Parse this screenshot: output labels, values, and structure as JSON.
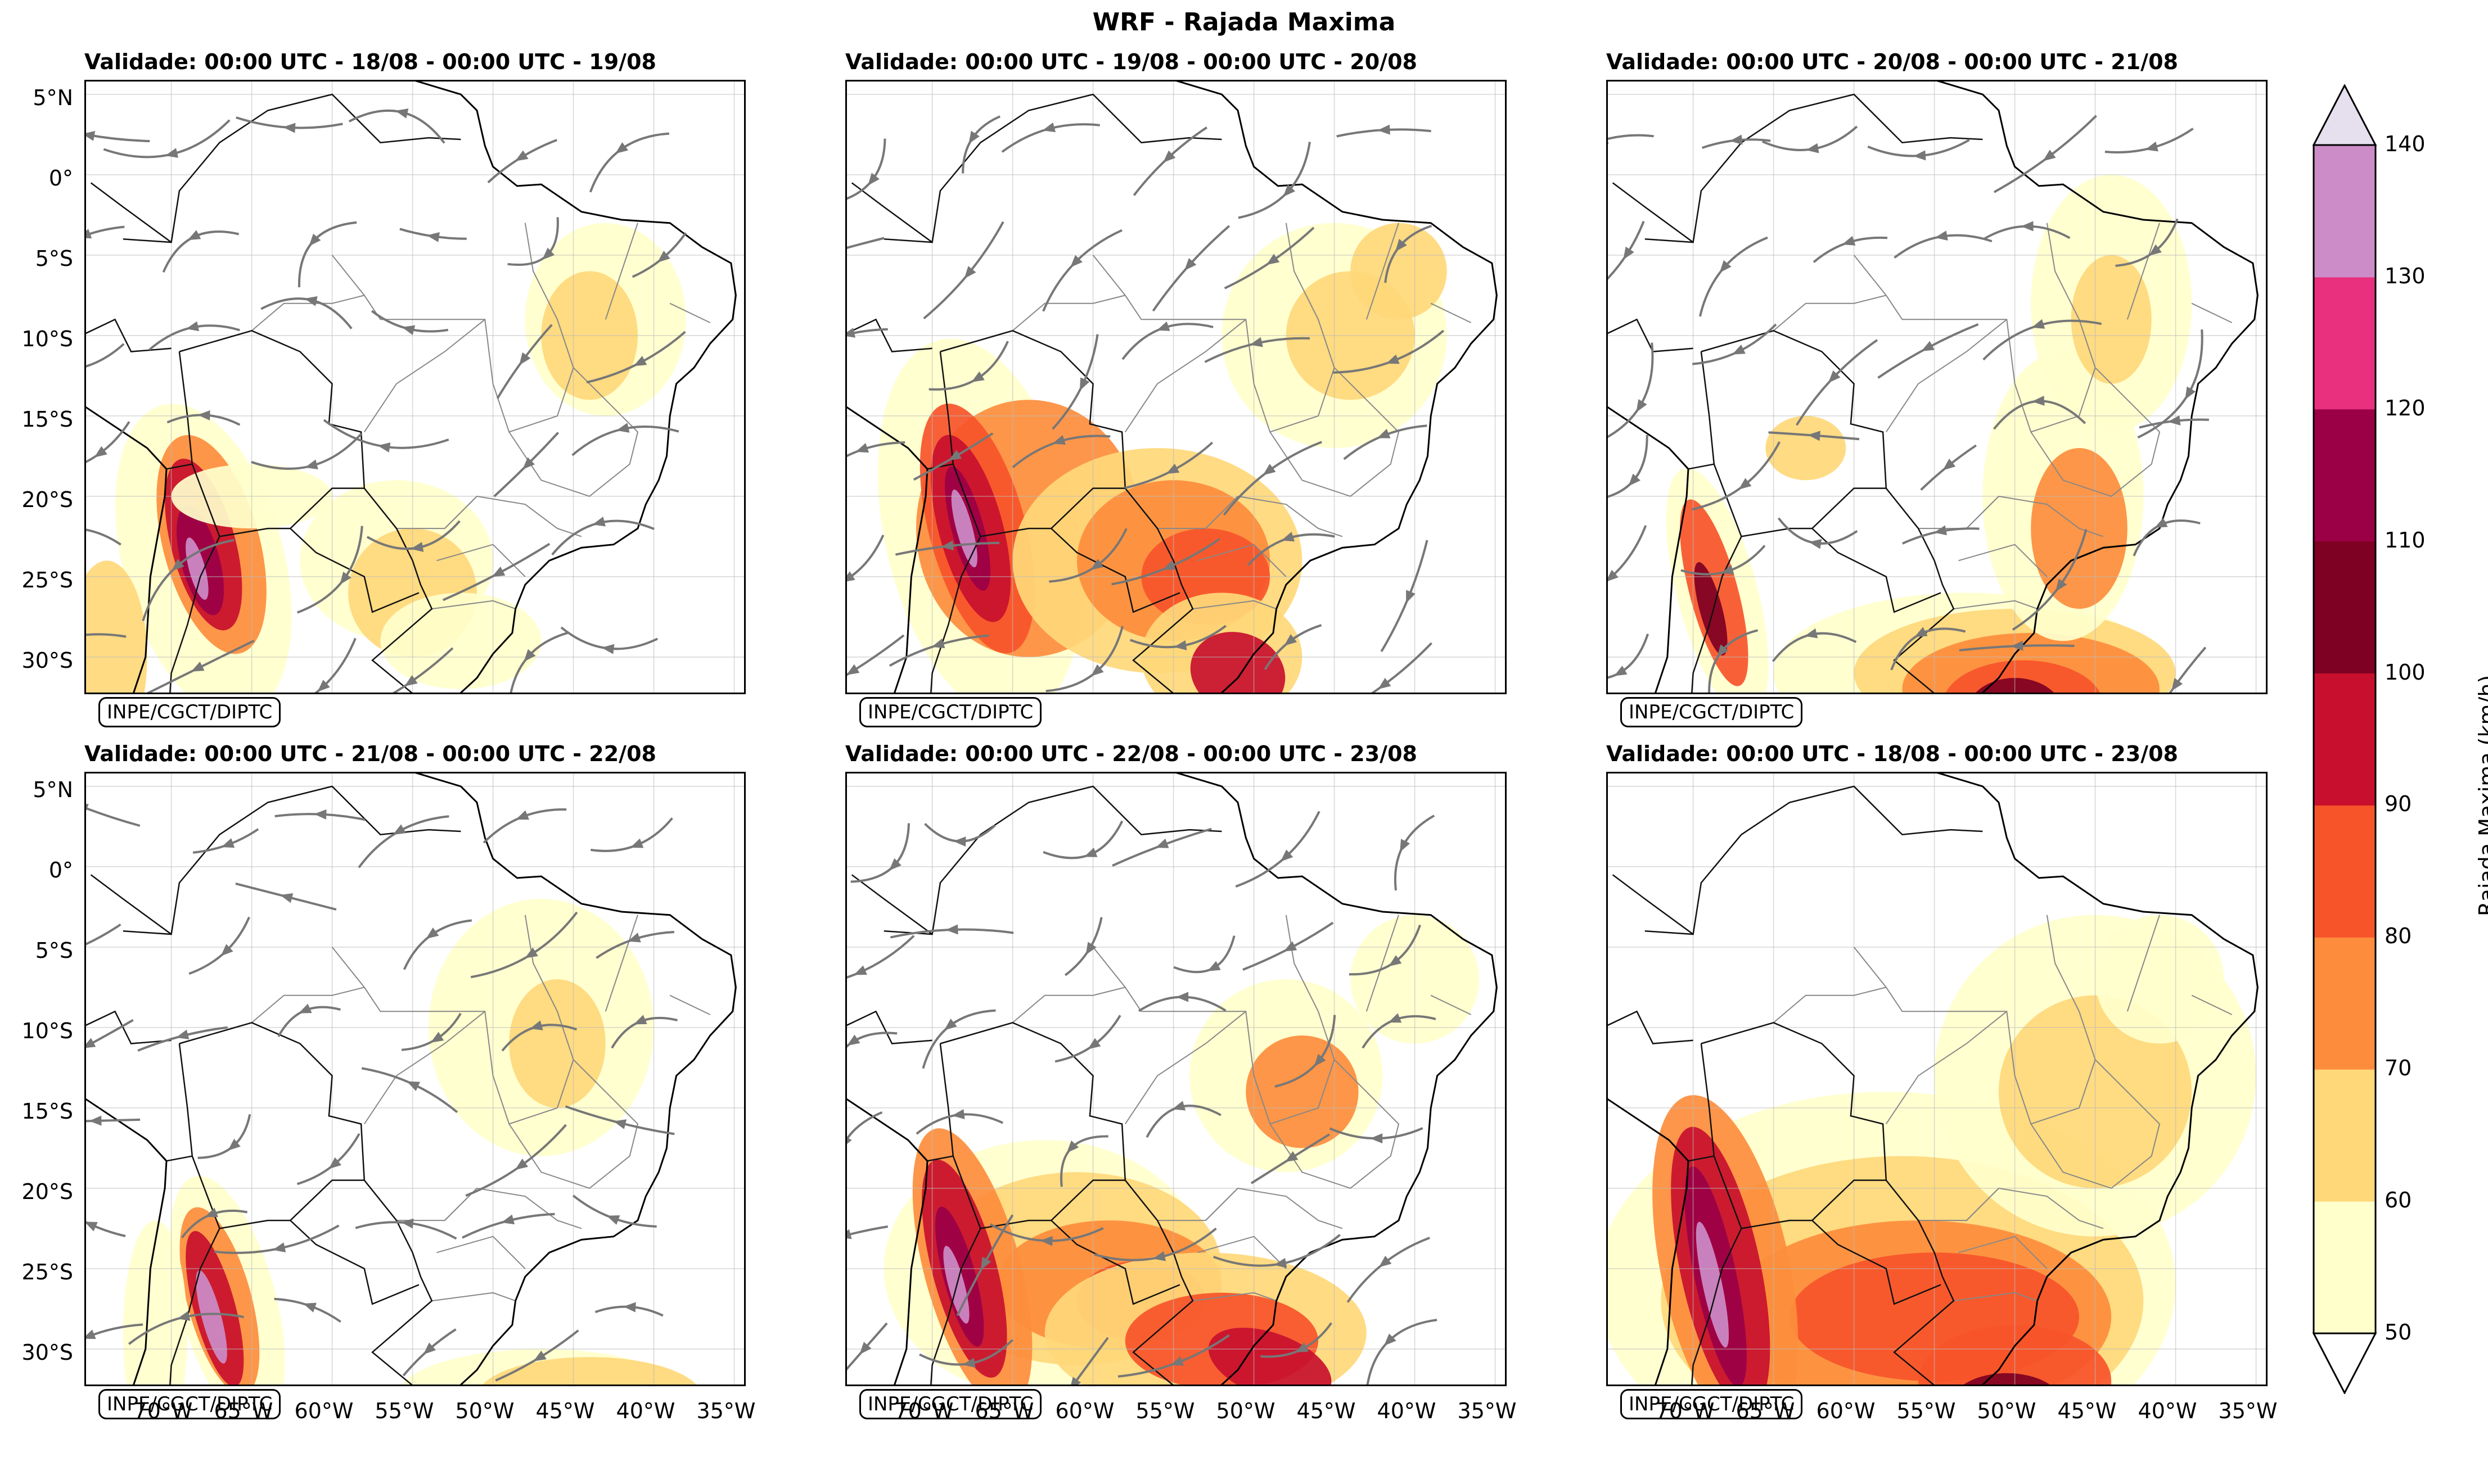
{
  "title": "WRF - Rajada Maxima",
  "panels": [
    {
      "title": "Validade: 00:00 UTC - 18/08 - 00:00 UTC - 19/08",
      "credit": "INPE/CGCT/DIPTC"
    },
    {
      "title": "Validade: 00:00 UTC - 19/08 - 00:00 UTC - 20/08",
      "credit": "INPE/CGCT/DIPTC"
    },
    {
      "title": "Validade: 00:00 UTC - 20/08 - 00:00 UTC - 21/08",
      "credit": "INPE/CGCT/DIPTC"
    },
    {
      "title": "Validade: 00:00 UTC - 21/08 - 00:00 UTC - 22/08",
      "credit": "INPE/CGCT/DIPTC"
    },
    {
      "title": "Validade: 00:00 UTC - 22/08 - 00:00 UTC - 23/08",
      "credit": "INPE/CGCT/DIPTC"
    },
    {
      "title": "Validade: 00:00 UTC - 18/08 - 00:00 UTC - 23/08",
      "credit": "INPE/CGCT/DIPTC"
    }
  ],
  "lat_ticks": [
    "5°N",
    "0°",
    "5°S",
    "10°S",
    "15°S",
    "20°S",
    "25°S",
    "30°S"
  ],
  "lon_ticks": [
    "70°W",
    "65°W",
    "60°W",
    "55°W",
    "50°W",
    "45°W",
    "40°W",
    "35°W"
  ],
  "colorbar": {
    "label": "Rajada Maxima (km/h)",
    "ticks": [
      "50",
      "60",
      "70",
      "80",
      "90",
      "100",
      "110",
      "120",
      "130",
      "140"
    ],
    "colors": [
      "#ffffcc",
      "#ffd87a",
      "#fd8d3c",
      "#f7542a",
      "#c8102e",
      "#7e0023",
      "#9b0046",
      "#e8307e",
      "#cc8cc8"
    ],
    "extend_low": "#ffffff",
    "extend_high": "#e6e0ee"
  }
}
